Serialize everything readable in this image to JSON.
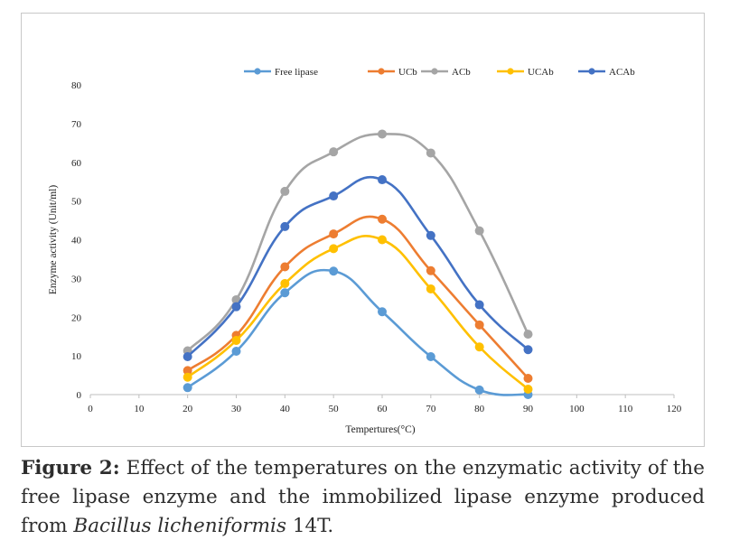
{
  "chart_data": {
    "type": "line",
    "title": "",
    "xlabel": "Tempertures(°C)",
    "ylabel": "Enzyme activity (Unit/ml)",
    "xlim": [
      0,
      120
    ],
    "ylim": [
      0,
      80
    ],
    "xticks": [
      0,
      10,
      20,
      30,
      40,
      50,
      60,
      70,
      80,
      90,
      100,
      110,
      120
    ],
    "yticks": [
      0,
      10,
      20,
      30,
      40,
      50,
      60,
      70,
      80
    ],
    "grid": false,
    "legend_position": "top",
    "x": [
      20,
      30,
      40,
      50,
      60,
      70,
      80,
      90
    ],
    "series": [
      {
        "name": "Free lipase",
        "color": "#5b9bd5",
        "values": [
          1.8,
          11.2,
          26.3,
          31.9,
          21.4,
          9.8,
          1.2,
          0
        ]
      },
      {
        "name": "UCb",
        "color": "#ed7d31",
        "values": [
          6.2,
          15.3,
          33.0,
          41.5,
          45.3,
          32.0,
          18.0,
          4.2
        ]
      },
      {
        "name": "ACb",
        "color": "#a5a5a5",
        "values": [
          11.3,
          24.5,
          52.5,
          62.7,
          67.3,
          62.4,
          42.3,
          15.6
        ]
      },
      {
        "name": "UCAb",
        "color": "#ffc000",
        "values": [
          4.5,
          14.0,
          28.7,
          37.7,
          40.0,
          27.3,
          12.3,
          1.4
        ]
      },
      {
        "name": "ACAb",
        "color": "#4472c4",
        "values": [
          9.8,
          22.7,
          43.4,
          51.3,
          55.5,
          41.1,
          23.2,
          11.6
        ]
      }
    ]
  },
  "caption": {
    "label": "Figure 2:",
    "text_before_italic": " Effect of the temperatures on the enzymatic activity of the free lipase enzyme and the immobilized lipase enzyme produced from ",
    "italic": "Bacillus licheniformis",
    "text_after_italic": " 14T."
  }
}
